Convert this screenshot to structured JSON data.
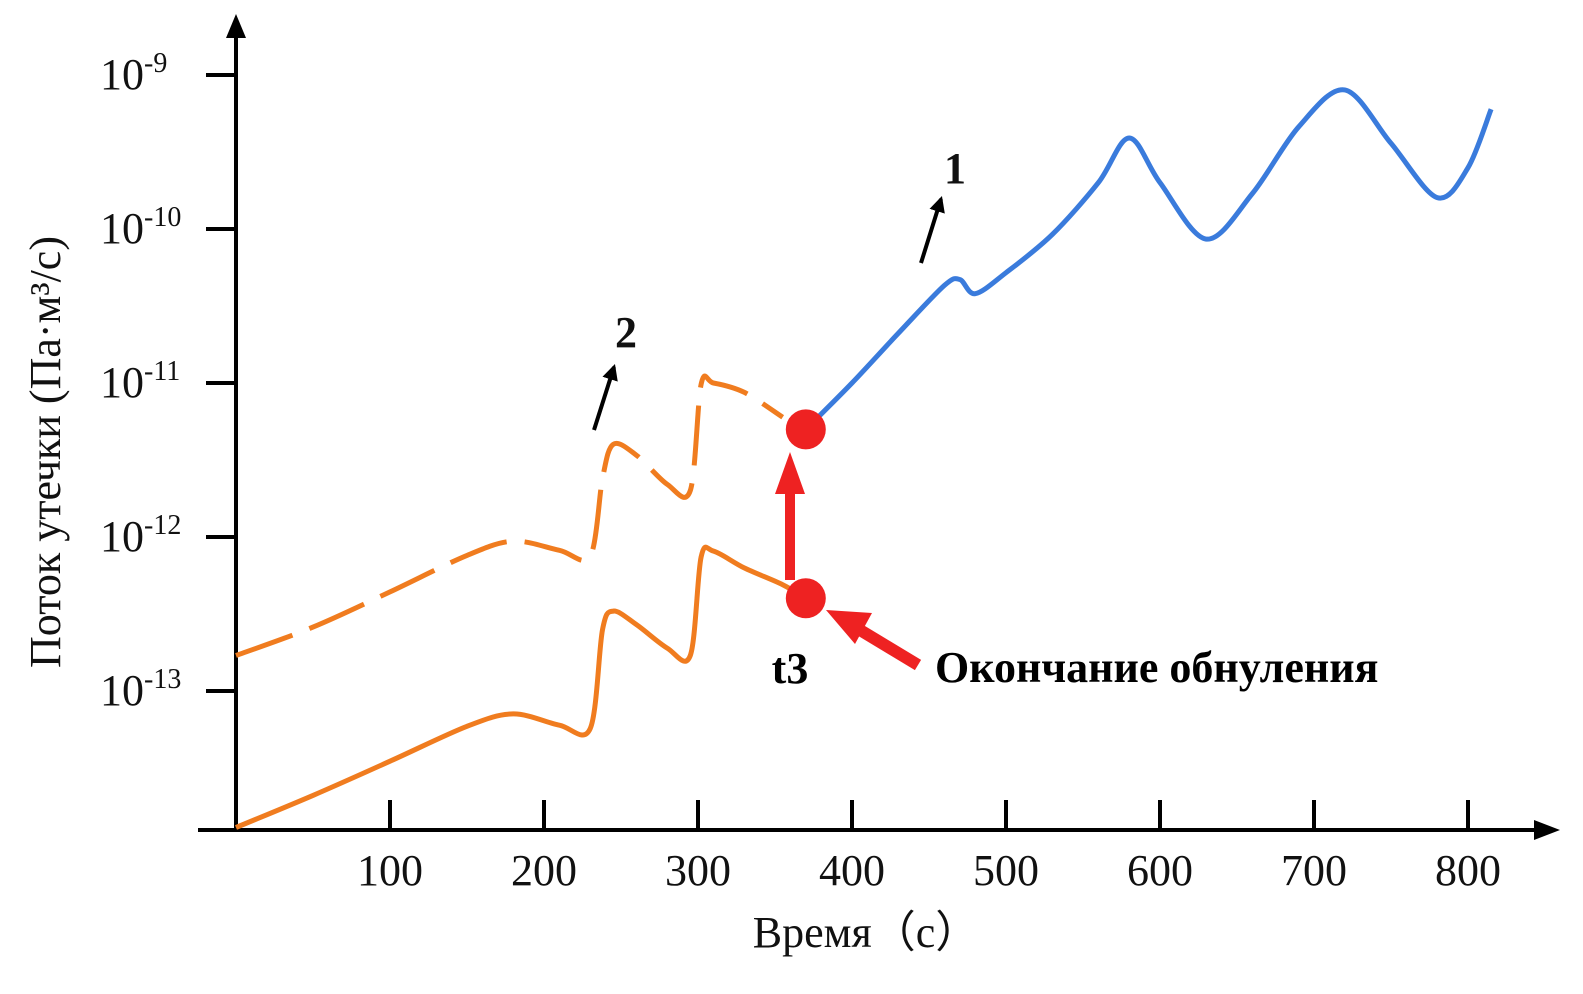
{
  "chart_data": {
    "type": "line",
    "xlabel": "Время（с）",
    "ylabel": "Поток утечки (Па·м³/с)",
    "y_scale": "log",
    "x_ticks": [
      "100",
      "200",
      "300",
      "400",
      "500",
      "600",
      "700",
      "800"
    ],
    "y_ticks": [
      {
        "base": "10",
        "exp": "-13"
      },
      {
        "base": "10",
        "exp": "-12"
      },
      {
        "base": "10",
        "exp": "-11"
      },
      {
        "base": "10",
        "exp": "-10"
      },
      {
        "base": "10",
        "exp": "-9"
      }
    ],
    "series": [
      {
        "name": "1",
        "color": "#3a7bdc",
        "style": "solid",
        "x": [
          370,
          400,
          430,
          460,
          470,
          480,
          500,
          530,
          560,
          580,
          600,
          630,
          660,
          690,
          720,
          750,
          780,
          800,
          815
        ],
        "y": [
          5e-12,
          1e-11,
          2.1e-11,
          4.3e-11,
          4.7e-11,
          3.8e-11,
          5.2e-11,
          9.2e-11,
          2e-10,
          3.9e-10,
          2e-10,
          8.6e-11,
          1.7e-10,
          4.6e-10,
          8e-10,
          3.6e-10,
          1.6e-10,
          2.5e-10,
          6e-10
        ]
      },
      {
        "name": "2",
        "color": "#f07c1f",
        "style": "dashed",
        "x": [
          0,
          50,
          100,
          150,
          180,
          210,
          230,
          238,
          245,
          260,
          280,
          295,
          302,
          310,
          330,
          355
        ],
        "y": [
          1.7e-13,
          2.6e-13,
          4.4e-13,
          7.6e-13,
          9.4e-13,
          8.2e-13,
          7.5e-13,
          2.4e-12,
          4e-12,
          3.4e-12,
          2.2e-12,
          2e-12,
          9.8e-12,
          1e-11,
          8.7e-12,
          6e-12
        ]
      },
      {
        "name": "",
        "color": "#f07c1f",
        "style": "solid",
        "x": [
          0,
          50,
          100,
          150,
          180,
          210,
          230,
          238,
          245,
          260,
          280,
          295,
          302,
          310,
          330,
          355,
          370
        ],
        "y": [
          1.3e-14,
          2.1e-14,
          3.5e-14,
          5.9e-14,
          7.1e-14,
          6e-14,
          5.7e-14,
          2.5e-13,
          3.3e-13,
          2.7e-13,
          1.9e-13,
          1.7e-13,
          7.4e-13,
          8.1e-13,
          6.3e-13,
          4.9e-13,
          4e-13
        ]
      }
    ],
    "points": [
      {
        "x": 370,
        "y": 4e-13
      },
      {
        "x": 370,
        "y": 5e-12
      }
    ],
    "annotations": {
      "t3": "t3",
      "end_label": "Окончание обнуления",
      "curve1_label": "1",
      "curve2_label": "2"
    },
    "colors": {
      "axis": "#000000",
      "annotation": "#ee2222"
    }
  }
}
